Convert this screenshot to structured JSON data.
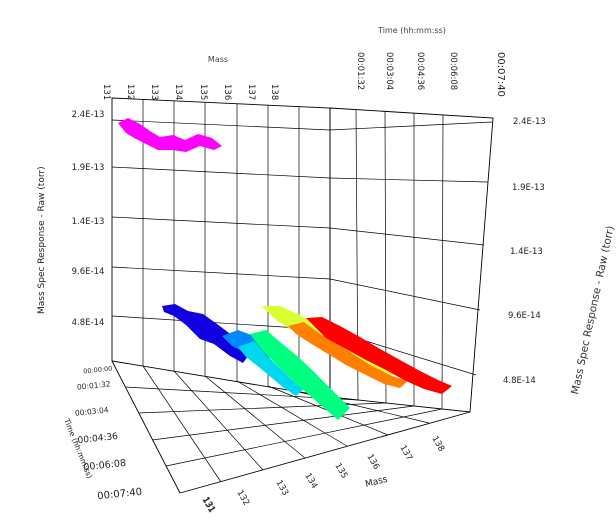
{
  "chart_data": {
    "type": "3d-ribbon",
    "x_axis": {
      "title": "Mass",
      "ticks_top": [
        "131",
        "132",
        "133",
        "134",
        "135",
        "136",
        "137",
        "138"
      ],
      "ticks_floor": [
        "131",
        "132",
        "133",
        "134",
        "135",
        "136",
        "137",
        "138"
      ],
      "range": [
        131,
        138
      ]
    },
    "y_axis": {
      "title": "Mass Spec Response - Raw (torr)",
      "ticks_left": [
        "4.8E-14",
        "9.6E-14",
        "1.4E-13",
        "1.9E-13",
        "2.4E-13"
      ],
      "ticks_right": [
        "4.8E-14",
        "9.6E-14",
        "1.4E-13",
        "1.9E-13",
        "2.4E-13"
      ],
      "range": [
        0,
        2.4e-13
      ]
    },
    "z_axis": {
      "title": "Time (hh:mm:ss)",
      "ticks": [
        "00:00:00",
        "00:01:32",
        "00:03:04",
        "00:04:36",
        "00:06:08",
        "00:07:40"
      ]
    },
    "series": [
      {
        "mass": 132,
        "color": "#ff00ff",
        "level": 2.35e-13
      },
      {
        "mass": 132,
        "color": "#1000e0",
        "level": 2.3e-14
      },
      {
        "mass": 133,
        "color": "#0088ff",
        "level": 2.6e-14
      },
      {
        "mass": 133,
        "color": "#00d8f0",
        "level": 2e-14
      },
      {
        "mass": 134,
        "color": "#00ff80",
        "level": 1.7e-14
      },
      {
        "mass": 135,
        "color": "#d8ff30",
        "level": 2.4e-14
      },
      {
        "mass": 136,
        "color": "#ff8000",
        "level": 1e-14
      },
      {
        "mass": 137,
        "color": "#ff0000",
        "level": 1.4e-14
      }
    ]
  }
}
